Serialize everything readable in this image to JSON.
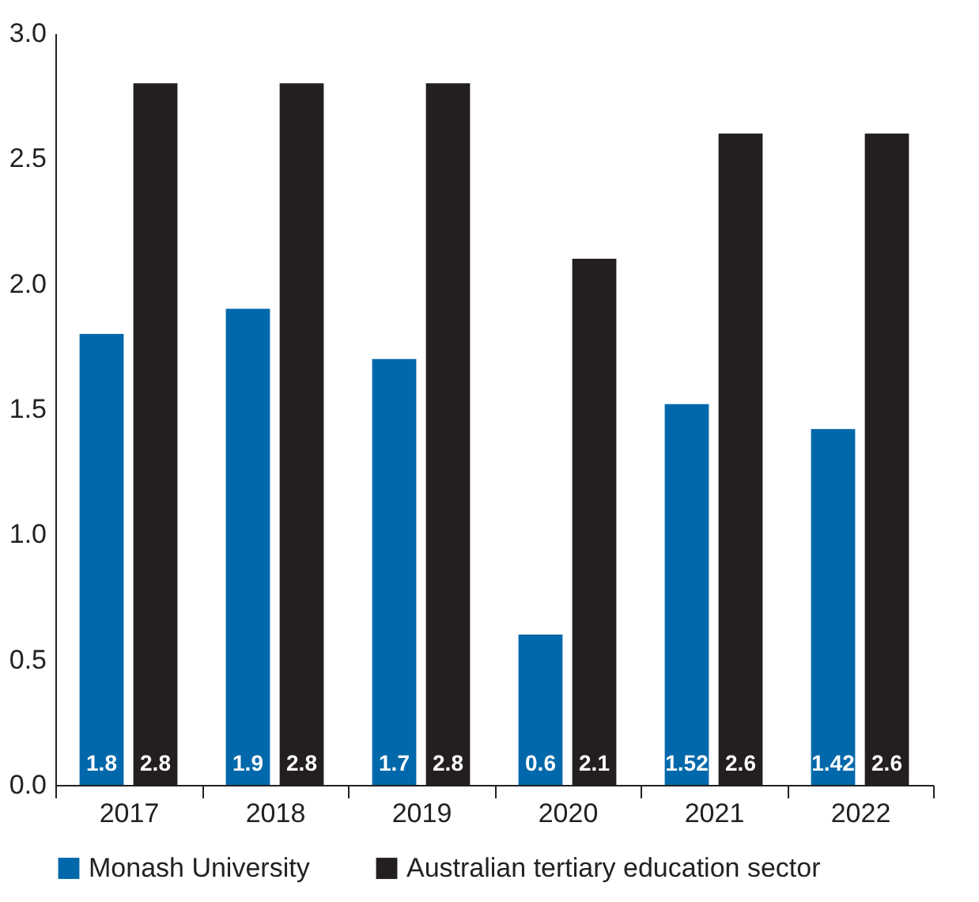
{
  "chart_data": {
    "type": "bar",
    "categories": [
      "2017",
      "2018",
      "2019",
      "2020",
      "2021",
      "2022"
    ],
    "series": [
      {
        "name": "Monash University",
        "color": "#0068ab",
        "values": [
          1.8,
          1.9,
          1.7,
          0.6,
          1.52,
          1.42
        ]
      },
      {
        "name": "Australian tertiary education sector",
        "color": "#231f20",
        "values": [
          2.8,
          2.8,
          2.8,
          2.1,
          2.6,
          2.6
        ]
      }
    ],
    "ylim": [
      0,
      3
    ],
    "yticks": [
      {
        "value": 0,
        "label": "0.0"
      },
      {
        "value": 0.5,
        "label": "0.5"
      },
      {
        "value": 1,
        "label": "1.0"
      },
      {
        "value": 1.5,
        "label": "1.5"
      },
      {
        "value": 2,
        "label": "2.0"
      },
      {
        "value": 2.5,
        "label": "2.5"
      },
      {
        "value": 3,
        "label": "3.0"
      }
    ],
    "data_labels": true,
    "legend": "bottom",
    "grid": false
  }
}
